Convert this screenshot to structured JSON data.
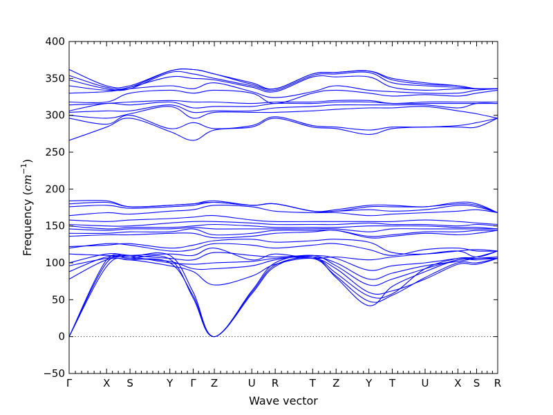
{
  "chart_data": {
    "type": "line",
    "title": "",
    "xlabel": "Wave vector",
    "ylabel_text": "Frequency (",
    "ylabel_unit_base": "cm",
    "ylabel_unit_exp": "−1",
    "ylabel_close": ")",
    "ylim": [
      -50,
      400
    ],
    "yticks": [
      -50,
      0,
      50,
      100,
      150,
      200,
      250,
      300,
      350,
      400
    ],
    "ytick_labels": [
      "−50",
      "0",
      "50",
      "100",
      "150",
      "200",
      "250",
      "300",
      "350",
      "400"
    ],
    "xlim": [
      0,
      18.3
    ],
    "high_symmetry_points": [
      {
        "label": "Γ",
        "x": 0
      },
      {
        "label": "X",
        "x": 1.6
      },
      {
        "label": "S",
        "x": 2.6
      },
      {
        "label": "Y",
        "x": 4.3
      },
      {
        "label": "Γ",
        "x": 5.3
      },
      {
        "label": "Z",
        "x": 6.2
      },
      {
        "label": "U",
        "x": 7.8
      },
      {
        "label": "R",
        "x": 8.8
      },
      {
        "label": "T",
        "x": 10.4
      },
      {
        "label": "Z",
        "x": 11.4
      },
      {
        "label": "Y",
        "x": 12.8
      },
      {
        "label": "T",
        "x": 13.8
      },
      {
        "label": "U",
        "x": 15.2
      },
      {
        "label": "X",
        "x": 16.6
      },
      {
        "label": "S",
        "x": 17.4
      },
      {
        "label": "R",
        "x": 18.3
      }
    ],
    "zero_reference_line": 0,
    "line_color": "#0000ff",
    "series": [
      {
        "values": [
          0,
          95,
          104,
          100,
          55,
          0,
          58,
          95,
          108,
          80,
          42,
          68,
          88,
          104,
          104,
          106
        ]
      },
      {
        "values": [
          0,
          100,
          106,
          105,
          52,
          0,
          60,
          97,
          106,
          82,
          48,
          56,
          80,
          100,
          100,
          106
        ]
      },
      {
        "values": [
          0,
          104,
          108,
          110,
          60,
          0,
          62,
          100,
          108,
          86,
          55,
          58,
          92,
          106,
          106,
          108
        ]
      },
      {
        "values": [
          78,
          104,
          104,
          96,
          88,
          70,
          82,
          98,
          106,
          92,
          60,
          62,
          78,
          98,
          98,
          106
        ]
      },
      {
        "values": [
          88,
          108,
          106,
          102,
          92,
          92,
          96,
          104,
          110,
          96,
          70,
          78,
          92,
          104,
          106,
          106
        ]
      },
      {
        "values": [
          96,
          106,
          108,
          100,
          98,
          100,
          102,
          106,
          108,
          100,
          78,
          86,
          96,
          102,
          106,
          108
        ]
      },
      {
        "values": [
          100,
          112,
          110,
          106,
          104,
          114,
          110,
          108,
          110,
          106,
          90,
          96,
          100,
          106,
          108,
          116
        ]
      },
      {
        "values": [
          112,
          110,
          110,
          112,
          110,
          120,
          104,
          112,
          106,
          108,
          104,
          108,
          112,
          116,
          108,
          116
        ]
      },
      {
        "values": [
          120,
          126,
          124,
          116,
          118,
          126,
          124,
          120,
          124,
          126,
          118,
          110,
          118,
          120,
          116,
          116
        ]
      },
      {
        "values": [
          122,
          124,
          126,
          120,
          124,
          130,
          132,
          128,
          130,
          132,
          128,
          114,
          112,
          116,
          118,
          116
        ]
      },
      {
        "values": [
          136,
          138,
          138,
          140,
          140,
          134,
          136,
          140,
          142,
          144,
          134,
          136,
          140,
          138,
          140,
          144
        ]
      },
      {
        "values": [
          140,
          140,
          142,
          142,
          146,
          138,
          140,
          144,
          144,
          144,
          136,
          138,
          142,
          142,
          144,
          144
        ]
      },
      {
        "values": [
          146,
          144,
          146,
          146,
          148,
          146,
          146,
          146,
          146,
          146,
          142,
          146,
          146,
          146,
          146,
          146
        ]
      },
      {
        "values": [
          150,
          146,
          148,
          148,
          150,
          152,
          150,
          148,
          148,
          148,
          150,
          150,
          150,
          148,
          148,
          146
        ]
      },
      {
        "values": [
          152,
          150,
          150,
          154,
          156,
          156,
          154,
          152,
          152,
          152,
          154,
          152,
          152,
          150,
          152,
          150
        ]
      },
      {
        "values": [
          158,
          156,
          158,
          160,
          162,
          164,
          158,
          156,
          156,
          156,
          156,
          156,
          158,
          156,
          154,
          152
        ]
      },
      {
        "values": [
          164,
          168,
          166,
          170,
          172,
          178,
          176,
          170,
          168,
          168,
          164,
          166,
          168,
          170,
          172,
          168
        ]
      },
      {
        "values": [
          176,
          178,
          174,
          176,
          178,
          182,
          178,
          180,
          170,
          170,
          172,
          170,
          172,
          178,
          176,
          168
        ]
      },
      {
        "values": [
          180,
          182,
          176,
          178,
          180,
          182,
          178,
          180,
          170,
          170,
          176,
          176,
          176,
          180,
          178,
          168
        ]
      },
      {
        "values": [
          184,
          184,
          176,
          178,
          180,
          184,
          178,
          180,
          170,
          172,
          178,
          178,
          176,
          182,
          180,
          168
        ]
      },
      {
        "values": [
          266,
          284,
          296,
          278,
          266,
          280,
          284,
          296,
          284,
          282,
          274,
          282,
          284,
          284,
          284,
          296
        ]
      },
      {
        "values": [
          296,
          288,
          300,
          282,
          290,
          282,
          286,
          298,
          286,
          284,
          280,
          284,
          284,
          286,
          290,
          296
        ]
      },
      {
        "values": [
          300,
          296,
          302,
          312,
          296,
          304,
          304,
          304,
          306,
          308,
          310,
          310,
          312,
          306,
          302,
          296
        ]
      },
      {
        "values": [
          304,
          306,
          306,
          314,
          304,
          306,
          306,
          310,
          312,
          314,
          314,
          314,
          314,
          310,
          316,
          316
        ]
      },
      {
        "values": [
          306,
          316,
          314,
          318,
          310,
          312,
          312,
          316,
          316,
          318,
          318,
          316,
          316,
          316,
          316,
          316
        ]
      },
      {
        "values": [
          314,
          316,
          318,
          320,
          318,
          318,
          316,
          318,
          318,
          320,
          320,
          316,
          318,
          318,
          318,
          318
        ]
      },
      {
        "values": [
          318,
          318,
          330,
          334,
          330,
          334,
          330,
          316,
          330,
          334,
          330,
          326,
          328,
          326,
          330,
          334
        ]
      },
      {
        "values": [
          330,
          332,
          336,
          340,
          336,
          344,
          332,
          324,
          332,
          340,
          334,
          332,
          330,
          330,
          334,
          336
        ]
      },
      {
        "values": [
          340,
          334,
          338,
          352,
          350,
          348,
          338,
          332,
          352,
          352,
          352,
          338,
          334,
          336,
          336,
          336
        ]
      },
      {
        "values": [
          348,
          336,
          336,
          358,
          356,
          350,
          340,
          334,
          354,
          356,
          358,
          344,
          340,
          338,
          336,
          336
        ]
      },
      {
        "values": [
          354,
          338,
          338,
          360,
          362,
          356,
          342,
          336,
          356,
          358,
          360,
          348,
          342,
          340,
          336,
          336
        ]
      },
      {
        "values": [
          362,
          340,
          340,
          360,
          362,
          356,
          344,
          336,
          356,
          358,
          360,
          350,
          344,
          340,
          336,
          336
        ]
      }
    ]
  }
}
